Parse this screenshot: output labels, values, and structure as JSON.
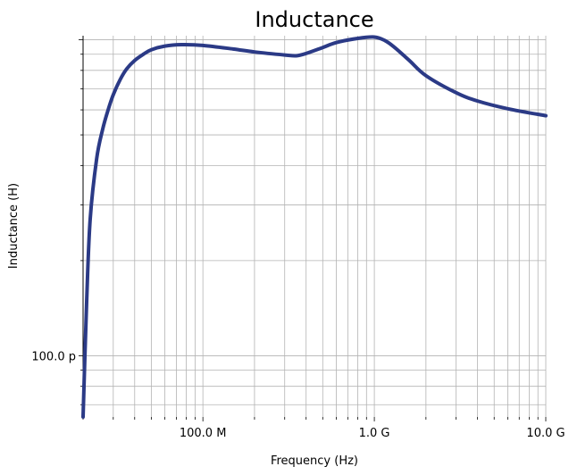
{
  "chart_data": {
    "type": "line",
    "title": "Inductance",
    "xlabel": "Frequency (Hz)",
    "ylabel": "Inductance (H)",
    "x_scale": "log",
    "y_scale": "log",
    "xlim": [
      20000000,
      10000000000
    ],
    "ylim": [
      6.4e-11,
      1.03e-09
    ],
    "x_ticks": [
      {
        "value": 100000000,
        "label": "100.0 M"
      },
      {
        "value": 1000000000,
        "label": "1.0 G"
      },
      {
        "value": 10000000000,
        "label": "10.0 G"
      }
    ],
    "y_ticks": [
      {
        "value": 1e-10,
        "label": "100.0 p"
      }
    ],
    "grid": true,
    "legend": "none",
    "line_color": "#2b3a86",
    "series": [
      {
        "x": [
          20000000,
          21000000,
          22000000,
          24000000,
          26000000,
          28000000,
          30000000,
          33000000,
          36000000,
          40000000,
          45000000,
          50000000,
          60000000,
          75000000,
          100000000,
          150000000,
          200000000,
          300000000,
          350000000,
          400000000,
          500000000,
          600000000,
          800000000,
          1000000000,
          1150000000,
          1300000000,
          1600000000,
          2000000000,
          3000000000,
          4000000000,
          6000000000,
          10000000000
        ],
        "y": [
          6.4e-11,
          1.5e-10,
          2.7e-10,
          4.2e-10,
          5.2e-10,
          6e-10,
          6.7e-10,
          7.5e-10,
          8.1e-10,
          8.6e-10,
          9e-10,
          9.3e-10,
          9.55e-10,
          9.65e-10,
          9.6e-10,
          9.35e-10,
          9.15e-10,
          8.95e-10,
          8.9e-10,
          9.05e-10,
          9.45e-10,
          9.8e-10,
          1.01e-09,
          1.02e-09,
          9.95e-10,
          9.5e-10,
          8.6e-10,
          7.7e-10,
          6.8e-10,
          6.4e-10,
          6.05e-10,
          5.75e-10
        ]
      }
    ]
  }
}
